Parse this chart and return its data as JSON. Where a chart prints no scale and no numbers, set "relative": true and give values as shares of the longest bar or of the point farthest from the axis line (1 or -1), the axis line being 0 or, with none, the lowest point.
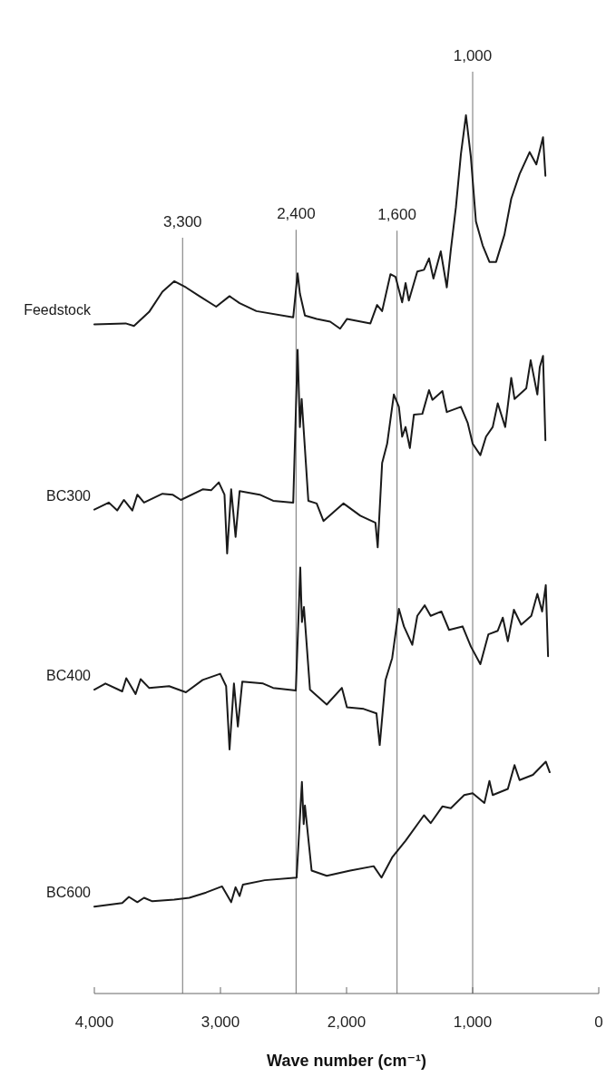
{
  "chart_data": {
    "type": "line",
    "xlabel": "Wave number (cm⁻¹)",
    "relative": true,
    "xlim": [
      4000,
      0
    ],
    "xticks": [
      {
        "value": 4000,
        "label": "4,000"
      },
      {
        "value": 3000,
        "label": "3,000"
      },
      {
        "value": 2000,
        "label": "2,000"
      },
      {
        "value": 1000,
        "label": "1,000"
      },
      0
    ],
    "tick_labels": "x",
    "grid": false,
    "legend": false,
    "ref_lines": [
      {
        "axis": "x",
        "value": 3300,
        "label": "3,300",
        "color": "#8a8a8a"
      },
      {
        "axis": "x",
        "value": 2400,
        "label": "2,400",
        "color": "#8a8a8a"
      },
      {
        "axis": "x",
        "value": 1600,
        "label": "1,600",
        "color": "#8a8a8a"
      },
      {
        "axis": "x",
        "value": 1000,
        "label": "1,000",
        "color": "#8a8a8a"
      }
    ],
    "series": [
      {
        "name": "Feedstock",
        "color": "#1a1a1a",
        "x": [
          4000,
          3752,
          3686,
          3566,
          3460,
          3367,
          3274,
          3167,
          3034,
          2928,
          2848,
          2715,
          2423,
          2388,
          2370,
          2330,
          2237,
          2130,
          2051,
          1997,
          1811,
          1758,
          1718,
          1652,
          1612,
          1559,
          1532,
          1506,
          1439,
          1386,
          1346,
          1311,
          1253,
          1205,
          1173,
          1133,
          1093,
          1053,
          1014,
          974,
          921,
          867,
          814,
          748,
          694,
          628,
          548,
          495,
          442,
          423
        ],
        "values": [
          0.762,
          0.763,
          0.76,
          0.776,
          0.799,
          0.811,
          0.804,
          0.794,
          0.782,
          0.794,
          0.786,
          0.777,
          0.77,
          0.82,
          0.797,
          0.772,
          0.768,
          0.765,
          0.757,
          0.768,
          0.763,
          0.784,
          0.777,
          0.819,
          0.816,
          0.787,
          0.809,
          0.789,
          0.822,
          0.824,
          0.837,
          0.814,
          0.845,
          0.804,
          0.847,
          0.895,
          0.956,
          1.0,
          0.952,
          0.879,
          0.852,
          0.833,
          0.833,
          0.864,
          0.905,
          0.933,
          0.958,
          0.944,
          0.975,
          0.931
        ]
      },
      {
        "name": "BC300",
        "color": "#1a1a1a",
        "x": [
          4000,
          3885,
          3819,
          3766,
          3699,
          3659,
          3606,
          3460,
          3380,
          3314,
          3141,
          3074,
          3013,
          2968,
          2947,
          2915,
          2880,
          2848,
          2689,
          2582,
          2423,
          2388,
          2370,
          2356,
          2303,
          2237,
          2183,
          2024,
          1891,
          1771,
          1753,
          1718,
          1678,
          1625,
          1585,
          1559,
          1532,
          1498,
          1466,
          1399,
          1346,
          1319,
          1240,
          1205,
          1093,
          1040,
          1000,
          939,
          894,
          841,
          801,
          742,
          694,
          668,
          575,
          540,
          487,
          468,
          442,
          423
        ],
        "values": [
          0.551,
          0.559,
          0.55,
          0.562,
          0.55,
          0.568,
          0.559,
          0.569,
          0.568,
          0.562,
          0.574,
          0.573,
          0.582,
          0.568,
          0.501,
          0.574,
          0.52,
          0.572,
          0.568,
          0.561,
          0.559,
          0.733,
          0.645,
          0.677,
          0.561,
          0.558,
          0.538,
          0.558,
          0.544,
          0.536,
          0.508,
          0.604,
          0.626,
          0.682,
          0.668,
          0.634,
          0.645,
          0.621,
          0.659,
          0.66,
          0.687,
          0.676,
          0.686,
          0.662,
          0.668,
          0.65,
          0.626,
          0.613,
          0.634,
          0.645,
          0.672,
          0.645,
          0.701,
          0.677,
          0.689,
          0.721,
          0.682,
          0.713,
          0.726,
          0.63
        ]
      },
      {
        "name": "BC400",
        "color": "#1a1a1a",
        "x": [
          4000,
          3912,
          3779,
          3747,
          3673,
          3633,
          3566,
          3407,
          3274,
          3141,
          3002,
          2955,
          2928,
          2893,
          2862,
          2827,
          2662,
          2582,
          2402,
          2367,
          2354,
          2338,
          2290,
          2157,
          2037,
          1997,
          1864,
          1763,
          1737,
          1691,
          1638,
          1585,
          1545,
          1479,
          1439,
          1380,
          1333,
          1248,
          1187,
          1080,
          1014,
          939,
          875,
          801,
          761,
          721,
          673,
          615,
          535,
          487,
          449,
          420,
          402
        ],
        "values": [
          0.346,
          0.353,
          0.344,
          0.359,
          0.341,
          0.358,
          0.348,
          0.35,
          0.343,
          0.357,
          0.364,
          0.35,
          0.278,
          0.353,
          0.304,
          0.355,
          0.353,
          0.348,
          0.345,
          0.485,
          0.423,
          0.44,
          0.346,
          0.329,
          0.348,
          0.326,
          0.324,
          0.319,
          0.283,
          0.357,
          0.382,
          0.438,
          0.418,
          0.397,
          0.43,
          0.442,
          0.43,
          0.435,
          0.414,
          0.418,
          0.395,
          0.375,
          0.409,
          0.413,
          0.428,
          0.401,
          0.437,
          0.42,
          0.43,
          0.455,
          0.435,
          0.465,
          0.384
        ]
      },
      {
        "name": "BC600",
        "color": "#1a1a1a",
        "x": [
          4000,
          3779,
          3726,
          3659,
          3606,
          3540,
          3367,
          3247,
          3114,
          2987,
          2915,
          2880,
          2848,
          2822,
          2649,
          2396,
          2354,
          2340,
          2330,
          2277,
          2157,
          1971,
          1785,
          1723,
          1638,
          1532,
          1386,
          1333,
          1240,
          1173,
          1067,
          1000,
          907,
          867,
          841,
          721,
          668,
          628,
          522,
          420,
          389
        ],
        "values": [
          0.099,
          0.103,
          0.11,
          0.104,
          0.109,
          0.105,
          0.107,
          0.109,
          0.115,
          0.122,
          0.104,
          0.121,
          0.111,
          0.124,
          0.129,
          0.132,
          0.241,
          0.193,
          0.214,
          0.14,
          0.134,
          0.14,
          0.145,
          0.132,
          0.155,
          0.174,
          0.203,
          0.194,
          0.213,
          0.211,
          0.226,
          0.228,
          0.217,
          0.242,
          0.226,
          0.233,
          0.26,
          0.243,
          0.249,
          0.264,
          0.252
        ]
      }
    ]
  }
}
